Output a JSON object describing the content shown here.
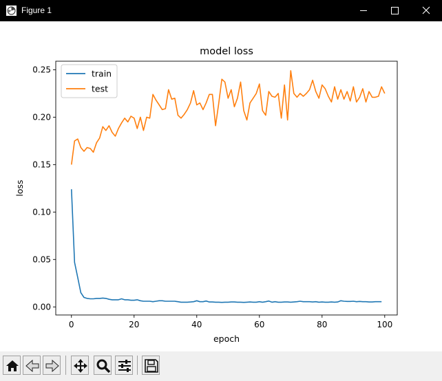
{
  "window": {
    "title": "Figure 1"
  },
  "chart_data": {
    "type": "line",
    "title": "model loss",
    "xlabel": "epoch",
    "ylabel": "loss",
    "xlim": [
      -5,
      104
    ],
    "ylim": [
      -0.0085,
      0.259
    ],
    "xticks": [
      0,
      20,
      40,
      60,
      80,
      100
    ],
    "yticks": [
      0.0,
      0.05,
      0.1,
      0.15,
      0.2,
      0.25
    ],
    "xtick_labels": [
      "0",
      "20",
      "40",
      "60",
      "80",
      "100"
    ],
    "ytick_labels": [
      "0.00",
      "0.05",
      "0.10",
      "0.15",
      "0.20",
      "0.25"
    ],
    "legend_position": "upper left",
    "grid": false,
    "series": [
      {
        "name": "train",
        "color": "#1f77b4",
        "values": [
          0.124,
          0.047,
          0.031,
          0.015,
          0.01,
          0.009,
          0.0085,
          0.0085,
          0.009,
          0.009,
          0.0093,
          0.009,
          0.008,
          0.0075,
          0.0075,
          0.0075,
          0.0085,
          0.0075,
          0.0075,
          0.007,
          0.007,
          0.0075,
          0.0065,
          0.006,
          0.006,
          0.006,
          0.0055,
          0.006,
          0.0065,
          0.0065,
          0.006,
          0.006,
          0.006,
          0.006,
          0.0055,
          0.005,
          0.005,
          0.005,
          0.0052,
          0.0055,
          0.0065,
          0.0055,
          0.0055,
          0.0062,
          0.0052,
          0.0052,
          0.005,
          0.005,
          0.0048,
          0.005,
          0.005,
          0.0052,
          0.0052,
          0.005,
          0.005,
          0.0048,
          0.005,
          0.0052,
          0.005,
          0.005,
          0.0055,
          0.005,
          0.0055,
          0.0062,
          0.005,
          0.0055,
          0.005,
          0.005,
          0.0052,
          0.0052,
          0.005,
          0.0052,
          0.0055,
          0.006,
          0.0055,
          0.0055,
          0.0055,
          0.0052,
          0.0055,
          0.005,
          0.0052,
          0.005,
          0.005,
          0.0052,
          0.005,
          0.0052,
          0.0065,
          0.006,
          0.0058,
          0.0058,
          0.006,
          0.0055,
          0.0058,
          0.0055,
          0.0055,
          0.0052,
          0.0052,
          0.0055,
          0.0055,
          0.0055
        ]
      },
      {
        "name": "test",
        "color": "#ff7f0e",
        "values": [
          0.15,
          0.175,
          0.177,
          0.168,
          0.164,
          0.168,
          0.167,
          0.163,
          0.173,
          0.178,
          0.19,
          0.186,
          0.191,
          0.184,
          0.18,
          0.188,
          0.194,
          0.199,
          0.195,
          0.201,
          0.199,
          0.188,
          0.2,
          0.186,
          0.2,
          0.199,
          0.224,
          0.218,
          0.213,
          0.208,
          0.209,
          0.229,
          0.219,
          0.22,
          0.202,
          0.199,
          0.203,
          0.208,
          0.215,
          0.228,
          0.213,
          0.215,
          0.208,
          0.215,
          0.224,
          0.224,
          0.191,
          0.214,
          0.24,
          0.237,
          0.22,
          0.229,
          0.211,
          0.22,
          0.237,
          0.207,
          0.197,
          0.215,
          0.22,
          0.225,
          0.235,
          0.207,
          0.202,
          0.227,
          0.222,
          0.221,
          0.225,
          0.199,
          0.234,
          0.197,
          0.249,
          0.225,
          0.221,
          0.225,
          0.222,
          0.225,
          0.229,
          0.239,
          0.227,
          0.22,
          0.234,
          0.23,
          0.222,
          0.216,
          0.232,
          0.219,
          0.229,
          0.219,
          0.227,
          0.217,
          0.232,
          0.216,
          0.221,
          0.23,
          0.216,
          0.227,
          0.221,
          0.221,
          0.222,
          0.232,
          0.225
        ]
      }
    ]
  },
  "toolbar": {
    "items": [
      {
        "name": "home-button",
        "icon": "home-icon"
      },
      {
        "name": "back-button",
        "icon": "left-arrow-icon"
      },
      {
        "name": "forward-button",
        "icon": "right-arrow-icon"
      },
      {
        "name": "pan-button",
        "icon": "move-icon"
      },
      {
        "name": "zoom-button",
        "icon": "magnifier-icon"
      },
      {
        "name": "configure-subplots-button",
        "icon": "sliders-icon"
      },
      {
        "name": "save-button",
        "icon": "floppy-icon"
      }
    ]
  }
}
